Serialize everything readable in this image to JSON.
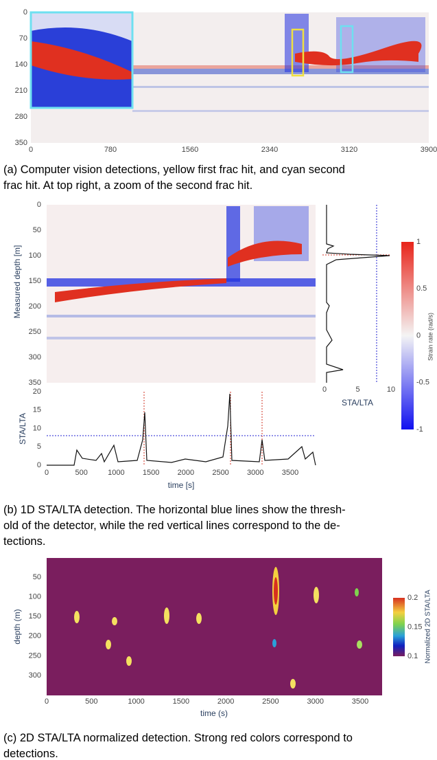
{
  "panel_a": {
    "yticks": [
      0,
      70,
      140,
      210,
      280,
      350
    ],
    "xticks": [
      0,
      780,
      1560,
      2340,
      3120,
      3900
    ],
    "caption": [
      "(a) Computer vision detections, yellow first frac hit, and cyan second",
      "frac hit. At top right, a zoom of the second frac hit."
    ]
  },
  "panel_b": {
    "heatmap_yticks": [
      0,
      50,
      100,
      150,
      200,
      250,
      300,
      350
    ],
    "heatmap_ylabel": "Measured depth [m]",
    "side_xticks": [
      0,
      5,
      10
    ],
    "side_xlabel": "STA/LTA",
    "colorbar_ticks": [
      1,
      0.5,
      0,
      -0.5,
      -1
    ],
    "colorbar_label": "Strain rate (rad/s)",
    "trace_yticks": [
      0,
      5,
      10,
      15,
      20
    ],
    "trace_ylabel": "STA/LTA",
    "trace_xticks": [
      0,
      500,
      1000,
      1500,
      2000,
      2500,
      3000,
      3500
    ],
    "trace_xlabel": "time [s]",
    "caption": [
      "(b) 1D STA/LTA detection. The horizontal blue lines show the thresh-",
      "old of the detector, while the red vertical lines correspond to the de-",
      "tections."
    ]
  },
  "panel_c": {
    "yticks": [
      50,
      100,
      150,
      200,
      250,
      300
    ],
    "ylabel": "depth (m)",
    "xticks": [
      0,
      500,
      1000,
      1500,
      2000,
      2500,
      3000,
      3500
    ],
    "xlabel": "time (s)",
    "colorbar_ticks": [
      0.2,
      0.15,
      0.1
    ],
    "colorbar_label": "Normalized 2D STA/LTA",
    "caption": [
      "(c) 2D STA/LTA normalized detection. Strong red colors correspond to",
      "detections."
    ]
  }
}
